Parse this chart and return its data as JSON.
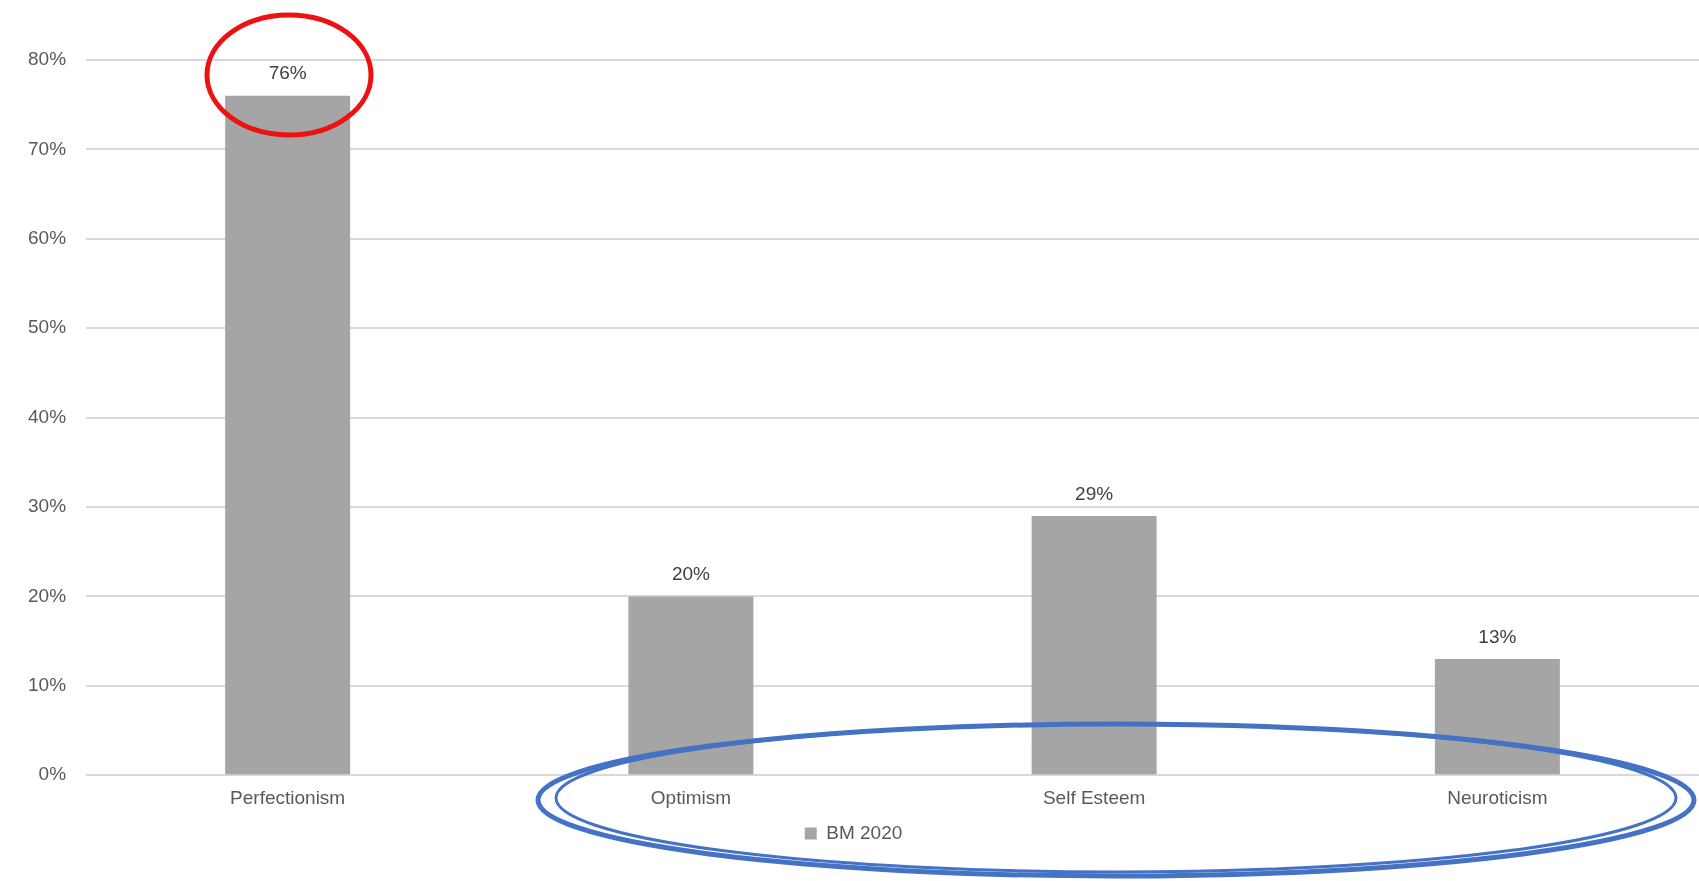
{
  "chart_data": {
    "type": "bar",
    "categories": [
      "Perfectionism",
      "Optimism",
      "Self Esteem",
      "Neuroticism"
    ],
    "series": [
      {
        "name": "BM 2020",
        "color": "#a5a5a5",
        "values": [
          76,
          20,
          29,
          13
        ],
        "value_labels": [
          "76%",
          "20%",
          "29%",
          "13%"
        ]
      }
    ],
    "ylim": [
      0,
      80
    ],
    "yticks": [
      {
        "value": 0,
        "label": "0%"
      },
      {
        "value": 10,
        "label": "10%"
      },
      {
        "value": 20,
        "label": "20%"
      },
      {
        "value": 30,
        "label": "30%"
      },
      {
        "value": 40,
        "label": "40%"
      },
      {
        "value": 50,
        "label": "50%"
      },
      {
        "value": 60,
        "label": "60%"
      },
      {
        "value": 70,
        "label": "70%"
      },
      {
        "value": 80,
        "label": "80%"
      }
    ],
    "grid": "y",
    "legend": "bottom"
  }
}
